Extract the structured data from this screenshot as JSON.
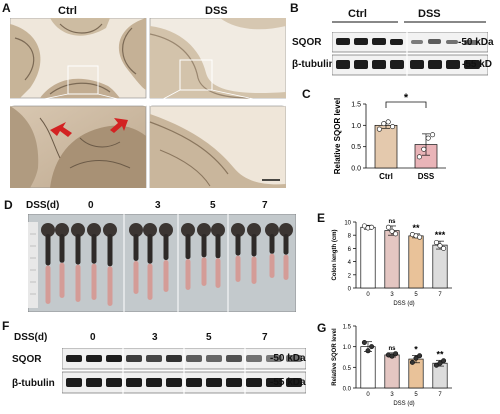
{
  "panel_letters": {
    "a": "A",
    "b": "B",
    "c": "C",
    "d": "D",
    "e": "E",
    "f": "F",
    "g": "G"
  },
  "panel_a": {
    "ctrl_label": "Ctrl",
    "dss_label": "DSS"
  },
  "panel_b": {
    "ctrl_label": "Ctrl",
    "dss_label": "DSS",
    "row1": "SQOR",
    "row2": "β-tubulin",
    "mw1": "-50 kDa",
    "mw2": "-55 kD"
  },
  "panel_d": {
    "group_label": "DSS(d)",
    "days": [
      "0",
      "3",
      "5",
      "7"
    ]
  },
  "panel_f": {
    "group_label": "DSS(d)",
    "days": [
      "0",
      "3",
      "5",
      "7"
    ],
    "row1": "SQOR",
    "row2": "β-tubulin",
    "mw1": "-50 kDa",
    "mw2": "-55 kDa"
  },
  "colors": {
    "ctrl_bar": "#e4c9ad",
    "dss_bar": "#e9b4b8",
    "day0_bar": "#ffffff",
    "day3_bar": "#e4c6c2",
    "day5_bar": "#e9c299",
    "day7_bar": "#dcdcdc",
    "arrow": "#d32222",
    "blot_band": "#1c1c1c"
  },
  "chart_data": [
    {
      "id": "C",
      "type": "bar",
      "categories": [
        "Ctrl",
        "DSS"
      ],
      "values": [
        1.0,
        0.55
      ],
      "errors": [
        0.07,
        0.25
      ],
      "points": [
        [
          0.91,
          1.04,
          1.08,
          0.97
        ],
        [
          0.26,
          0.44,
          0.7,
          0.78
        ]
      ],
      "ylabel": "Relative SQOR level",
      "xlabel": "",
      "ylim": [
        0,
        1.5
      ],
      "yticks": [
        "0.0",
        "0.5",
        "1.0",
        "1.5"
      ],
      "significance": "*"
    },
    {
      "id": "E",
      "type": "bar",
      "categories": [
        "0",
        "3",
        "5",
        "7"
      ],
      "values": [
        9.2,
        8.7,
        7.9,
        6.5
      ],
      "errors": [
        0.3,
        0.7,
        0.3,
        0.6
      ],
      "points": [
        [
          9.4,
          9.1,
          9.2
        ],
        [
          9.2,
          8.6,
          8.2
        ],
        [
          8.1,
          7.9,
          7.7
        ],
        [
          6.9,
          6.4,
          6.0
        ]
      ],
      "ylabel": "Colon length (cm)",
      "xlabel": "DSS (d)",
      "ylim": [
        0,
        10
      ],
      "yticks": [
        "0",
        "2",
        "4",
        "6",
        "8",
        "10"
      ],
      "significance": [
        "",
        "ns",
        "**",
        "***"
      ]
    },
    {
      "id": "G",
      "type": "bar",
      "categories": [
        "0",
        "3",
        "5",
        "7"
      ],
      "values": [
        1.0,
        0.8,
        0.7,
        0.6
      ],
      "errors": [
        0.12,
        0.05,
        0.09,
        0.07
      ],
      "points": [
        [
          1.1,
          0.9,
          1.0
        ],
        [
          0.8,
          0.77,
          0.83
        ],
        [
          0.62,
          0.72,
          0.78
        ],
        [
          0.55,
          0.6,
          0.66
        ]
      ],
      "ylabel": "Relative SQOR level",
      "xlabel": "DSS (d)",
      "ylim": [
        0,
        1.5
      ],
      "yticks": [
        "0.0",
        "0.5",
        "1.0",
        "1.5"
      ],
      "significance": [
        "",
        "ns",
        "*",
        "**"
      ]
    }
  ]
}
